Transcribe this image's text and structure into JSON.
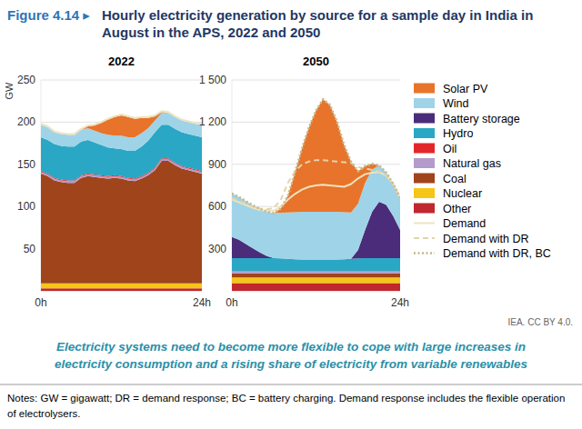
{
  "figure_label": "Figure 4.14 ▸",
  "title": "Hourly electricity generation by source for a sample day in India in August in the APS, 2022 and 2050",
  "caption": "Electricity systems need to become more flexible to cope with large increases in electricity consumption and a rising share of electricity from variable renewables",
  "source": "IEA. CC BY 4.0.",
  "notes": "Notes: GW = gigawatt; DR = demand response; BC = battery charging. Demand response includes the flexible operation of electrolysers.",
  "chart_data": [
    {
      "type": "area",
      "title": "2022",
      "y_label": "GW",
      "stacked": true,
      "grid": true,
      "x": [
        0,
        1,
        2,
        3,
        4,
        5,
        6,
        7,
        8,
        9,
        10,
        11,
        12,
        13,
        14,
        15,
        16,
        17,
        18,
        19,
        20,
        21,
        22,
        23,
        24
      ],
      "xlim": [
        0,
        24
      ],
      "xticks": [
        {
          "value": 0,
          "label": "0h"
        },
        {
          "value": 24,
          "label": "24h"
        }
      ],
      "ylim": [
        0,
        250
      ],
      "yticks": [
        50,
        100,
        150,
        200,
        250
      ],
      "series": [
        {
          "name": "Solar PV",
          "type": "area",
          "color": "#e8732a",
          "values": [
            0,
            0,
            0,
            0,
            0,
            0,
            0,
            2,
            6,
            12,
            18,
            22,
            24,
            24,
            22,
            18,
            12,
            5,
            1,
            0,
            0,
            0,
            0,
            0,
            0
          ]
        },
        {
          "name": "Wind",
          "type": "area",
          "color": "#9fd3e8",
          "values": [
            15,
            15,
            14,
            14,
            14,
            14,
            14,
            14,
            14,
            14,
            15,
            15,
            16,
            16,
            16,
            16,
            15,
            14,
            14,
            14,
            14,
            14,
            14,
            14,
            15
          ]
        },
        {
          "name": "Hydro",
          "type": "area",
          "color": "#2aa7c4",
          "values": [
            40,
            40,
            40,
            40,
            40,
            40,
            40,
            40,
            38,
            36,
            34,
            32,
            32,
            32,
            33,
            35,
            38,
            42,
            40,
            40,
            40,
            40,
            40,
            40,
            40
          ]
        },
        {
          "name": "Oil",
          "type": "area",
          "color": "#e3262a",
          "values": [
            1,
            1,
            1,
            1,
            1,
            1,
            1,
            1,
            1,
            1,
            1,
            1,
            1,
            1,
            1,
            1,
            1,
            1,
            1,
            1,
            1,
            1,
            1,
            1,
            1
          ]
        },
        {
          "name": "Natural gas",
          "type": "area",
          "color": "#b39bcb",
          "values": [
            2,
            2,
            2,
            2,
            2,
            2,
            2,
            2,
            2,
            2,
            2,
            2,
            2,
            2,
            2,
            2,
            2,
            2,
            2,
            2,
            2,
            2,
            2,
            2,
            2
          ]
        },
        {
          "name": "Coal",
          "type": "area",
          "color": "#a0441c",
          "values": [
            130,
            127,
            122,
            120,
            119,
            119,
            125,
            127,
            126,
            125,
            124,
            125,
            124,
            122,
            121,
            124,
            128,
            134,
            145,
            145,
            140,
            136,
            134,
            132,
            130
          ]
        },
        {
          "name": "Nuclear",
          "type": "area",
          "color": "#f5c518",
          "values": [
            6,
            6,
            6,
            6,
            6,
            6,
            6,
            6,
            6,
            6,
            6,
            6,
            6,
            6,
            6,
            6,
            6,
            6,
            6,
            6,
            6,
            6,
            6,
            6,
            6
          ]
        },
        {
          "name": "Other",
          "type": "area",
          "color": "#c0282d",
          "values": [
            3,
            3,
            3,
            3,
            3,
            3,
            3,
            3,
            3,
            3,
            3,
            3,
            3,
            3,
            3,
            3,
            3,
            3,
            3,
            3,
            3,
            3,
            3,
            3,
            3
          ]
        },
        {
          "name": "Demand",
          "type": "line",
          "line_style": "solid",
          "color": "#ede3c0",
          "values": [
            198,
            195,
            189,
            187,
            186,
            186,
            192,
            196,
            197,
            200,
            204,
            207,
            209,
            207,
            205,
            206,
            206,
            208,
            213,
            212,
            207,
            203,
            201,
            199,
            198
          ]
        }
      ]
    },
    {
      "type": "area",
      "title": "2050",
      "stacked": true,
      "grid": true,
      "x": [
        0,
        1,
        2,
        3,
        4,
        5,
        6,
        7,
        8,
        9,
        10,
        11,
        12,
        13,
        14,
        15,
        16,
        17,
        18,
        19,
        20,
        21,
        22,
        23,
        24
      ],
      "xlim": [
        0,
        24
      ],
      "xticks": [
        {
          "value": 0,
          "label": "0h"
        },
        {
          "value": 24,
          "label": "24h"
        }
      ],
      "ylim": [
        0,
        1500
      ],
      "yticks": [
        300,
        600,
        900,
        {
          "value": 1200,
          "label": "1 200"
        },
        {
          "value": 1500,
          "label": "1 500"
        }
      ],
      "series": [
        {
          "name": "Solar PV",
          "type": "area",
          "color": "#e8732a",
          "values": [
            0,
            0,
            0,
            0,
            0,
            0,
            0,
            30,
            120,
            280,
            450,
            600,
            720,
            800,
            760,
            640,
            480,
            360,
            230,
            120,
            40,
            0,
            0,
            0,
            0
          ]
        },
        {
          "name": "Wind",
          "type": "area",
          "color": "#9fd3e8",
          "values": [
            310,
            305,
            305,
            305,
            310,
            315,
            320,
            325,
            330,
            335,
            340,
            340,
            340,
            340,
            340,
            340,
            335,
            330,
            330,
            335,
            300,
            260,
            230,
            230,
            230
          ]
        },
        {
          "name": "Battery storage",
          "type": "area",
          "color": "#4b2c7a",
          "values": [
            150,
            130,
            100,
            70,
            40,
            15,
            0,
            0,
            0,
            0,
            0,
            0,
            0,
            0,
            0,
            0,
            0,
            0,
            60,
            200,
            330,
            400,
            380,
            300,
            200
          ]
        },
        {
          "name": "Hydro",
          "type": "area",
          "color": "#2aa7c4",
          "values": [
            90,
            90,
            90,
            90,
            90,
            90,
            90,
            88,
            85,
            82,
            80,
            80,
            80,
            80,
            80,
            80,
            82,
            85,
            88,
            90,
            90,
            90,
            90,
            90,
            90
          ]
        },
        {
          "name": "Oil",
          "type": "area",
          "color": "#e3262a",
          "values": [
            3,
            3,
            3,
            3,
            3,
            3,
            3,
            3,
            3,
            3,
            3,
            3,
            3,
            3,
            3,
            3,
            3,
            3,
            3,
            3,
            3,
            3,
            3,
            3,
            3
          ]
        },
        {
          "name": "Natural gas",
          "type": "area",
          "color": "#b39bcb",
          "values": [
            15,
            15,
            15,
            15,
            15,
            15,
            15,
            15,
            15,
            15,
            15,
            15,
            15,
            15,
            15,
            15,
            15,
            15,
            15,
            15,
            15,
            15,
            15,
            15,
            15
          ]
        },
        {
          "name": "Coal",
          "type": "area",
          "color": "#a0441c",
          "values": [
            30,
            30,
            30,
            30,
            30,
            30,
            30,
            30,
            30,
            30,
            30,
            30,
            30,
            30,
            30,
            30,
            30,
            30,
            30,
            30,
            30,
            30,
            30,
            30,
            30
          ]
        },
        {
          "name": "Nuclear",
          "type": "area",
          "color": "#f5c518",
          "values": [
            40,
            40,
            40,
            40,
            40,
            40,
            40,
            40,
            40,
            40,
            40,
            40,
            40,
            40,
            40,
            40,
            40,
            40,
            40,
            40,
            40,
            40,
            40,
            40,
            40
          ]
        },
        {
          "name": "Other",
          "type": "area",
          "color": "#c0282d",
          "values": [
            55,
            55,
            55,
            55,
            55,
            55,
            55,
            55,
            55,
            55,
            55,
            55,
            55,
            55,
            55,
            55,
            55,
            55,
            55,
            55,
            55,
            55,
            55,
            55,
            55
          ]
        },
        {
          "name": "Demand",
          "type": "line",
          "line_style": "solid",
          "color": "#ede3c0",
          "values": [
            650,
            630,
            610,
            590,
            575,
            570,
            570,
            600,
            650,
            690,
            720,
            740,
            750,
            755,
            750,
            745,
            740,
            760,
            800,
            830,
            840,
            845,
            820,
            760,
            660
          ]
        },
        {
          "name": "Demand with DR",
          "type": "line",
          "line_style": "dashed",
          "color": "#e2d4a8",
          "values": [
            660,
            640,
            620,
            600,
            585,
            580,
            590,
            650,
            770,
            850,
            900,
            920,
            930,
            930,
            925,
            920,
            915,
            910,
            880,
            870,
            860,
            850,
            820,
            760,
            660
          ]
        },
        {
          "name": "Demand with DR, BC",
          "type": "line",
          "line_style": "dotted",
          "color": "#c8b88a",
          "values": [
            693,
            668,
            638,
            608,
            583,
            563,
            553,
            586,
            678,
            840,
            1013,
            1163,
            1283,
            1363,
            1323,
            1203,
            1040,
            918,
            851,
            888,
            903,
            893,
            843,
            763,
            663
          ]
        }
      ]
    }
  ]
}
